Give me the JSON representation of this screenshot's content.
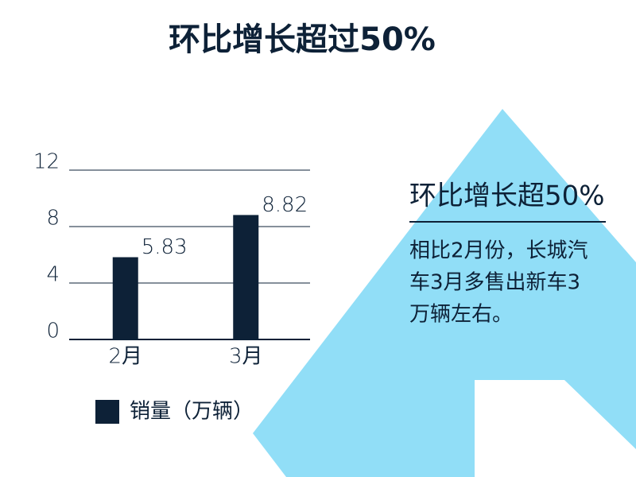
{
  "chart_data": {
    "type": "bar",
    "title": "环比增长超过50%",
    "categories": [
      "2月",
      "3月"
    ],
    "series": [
      {
        "name": "销量（万辆）",
        "color": "#0d2137",
        "values": [
          5.83,
          8.82
        ]
      }
    ],
    "ylim": [
      0,
      12
    ],
    "yticks": [
      0,
      4,
      8,
      12
    ],
    "grid": true
  },
  "callout": {
    "heading": "环比增长超50%",
    "body_lines": [
      "相比2月份，长城汽",
      "车3月多售出新车3",
      "万辆左右。"
    ]
  }
}
